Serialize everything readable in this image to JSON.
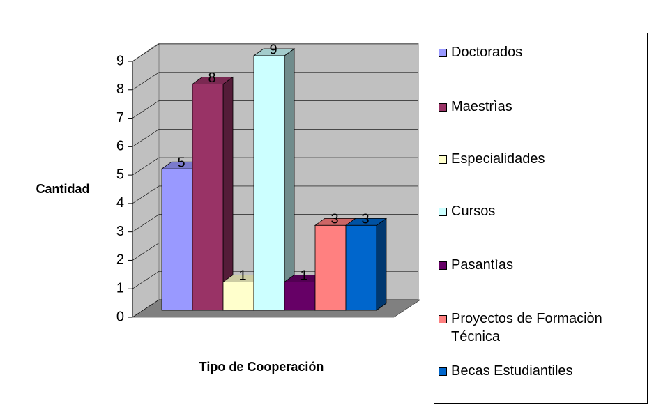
{
  "chart_data": {
    "type": "bar",
    "y_label": "Cantidad",
    "x_label": "Tipo de Cooperación",
    "categories": [
      null
    ],
    "series": [
      {
        "name": "Doctorados",
        "color": "#9999ff",
        "values": [
          5
        ]
      },
      {
        "name": "Maestrìas",
        "color": "#993366",
        "values": [
          8
        ]
      },
      {
        "name": "Especialidades",
        "color": "#ffffcc",
        "values": [
          1
        ]
      },
      {
        "name": "Cursos",
        "color": "#ccffff",
        "values": [
          9
        ]
      },
      {
        "name": "Pasantìas",
        "color": "#660066",
        "values": [
          1
        ]
      },
      {
        "name": "Proyectos de Formaciòn Técnica",
        "color": "#ff8080",
        "values": [
          3
        ]
      },
      {
        "name": "Becas Estudiantiles",
        "color": "#0066cc",
        "values": [
          3
        ]
      }
    ],
    "ylim": [
      0,
      9
    ],
    "yticks": [
      0,
      1,
      2,
      3,
      4,
      5,
      6,
      7,
      8,
      9
    ],
    "grid": true,
    "legend": "right"
  }
}
